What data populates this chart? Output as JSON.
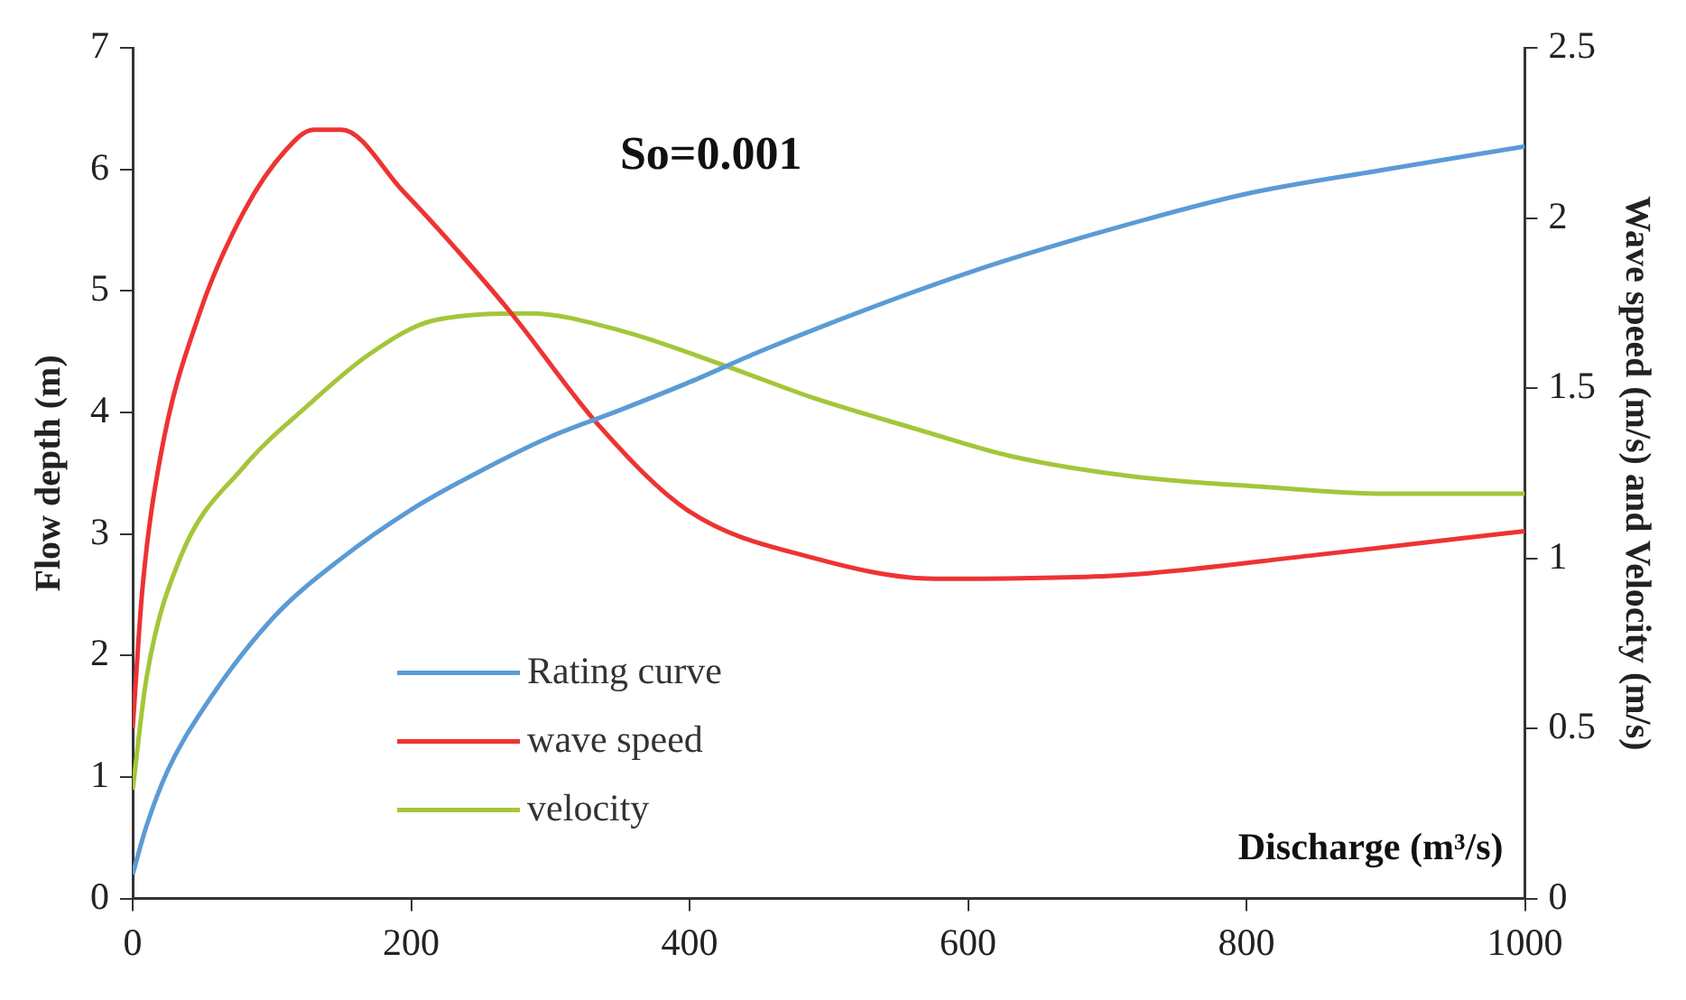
{
  "chart_data": {
    "type": "line",
    "xlabel": "Discharge (m³/s)",
    "ylabel": "Flow depth (m)",
    "y2label": "Wave speed (m/s) and Velocity (m/s)",
    "annotations": [
      "So=0.001"
    ],
    "xlim": [
      0,
      1000
    ],
    "xticks": [
      0,
      200,
      400,
      600,
      800,
      1000
    ],
    "ylim": [
      0,
      7
    ],
    "yticks": [
      0,
      1,
      2,
      3,
      4,
      5,
      6,
      7
    ],
    "y2lim": [
      0,
      2.5
    ],
    "y2ticks": [
      0,
      0.5,
      1,
      1.5,
      2,
      2.5
    ],
    "grid": false,
    "legend": "bottom left",
    "marker": "none",
    "line_style": "solid",
    "series": [
      {
        "name": "Rating curve",
        "color": "#5b9bd5",
        "x": [
          0,
          10,
          25,
          50,
          100,
          150,
          200,
          250,
          300,
          350,
          400,
          450,
          500,
          600,
          700,
          800,
          900,
          1000
        ],
        "values": [
          0.2,
          0.6,
          1.05,
          1.55,
          2.3,
          2.8,
          3.2,
          3.52,
          3.8,
          4.02,
          4.25,
          4.5,
          4.73,
          5.15,
          5.5,
          5.8,
          6.0,
          6.19
        ]
      },
      {
        "name": "wave speed",
        "color": "#ee3333",
        "axis": "y2",
        "x": [
          0,
          7,
          20,
          48,
          80,
          110,
          130,
          150,
          194,
          230,
          272,
          335,
          399,
          490,
          577,
          709,
          850,
          1000
        ],
        "values": [
          0.5,
          0.91,
          1.3,
          1.72,
          2.02,
          2.2,
          2.26,
          2.26,
          2.08,
          1.92,
          1.72,
          1.39,
          1.14,
          1.0,
          0.94,
          0.95,
          1.01,
          1.08
        ]
      },
      {
        "name": "velocity",
        "color": "#a4c639",
        "axis": "y2",
        "x": [
          0,
          10,
          34,
          80,
          126,
          170,
          217,
          285,
          350,
          423,
          490,
          563,
          631,
          720,
          813,
          900,
          1000
        ],
        "values": [
          0.32,
          0.65,
          1.0,
          1.27,
          1.45,
          1.6,
          1.7,
          1.72,
          1.67,
          1.57,
          1.47,
          1.38,
          1.3,
          1.24,
          1.21,
          1.19,
          1.19
        ]
      }
    ]
  }
}
